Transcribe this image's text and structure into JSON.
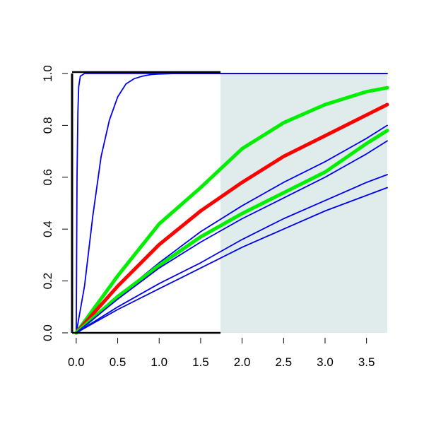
{
  "chart_data": {
    "type": "line",
    "title": "",
    "xlabel": "",
    "ylabel": "",
    "xlim": [
      -0.05,
      3.75
    ],
    "ylim": [
      0,
      1
    ],
    "x_ticks": [
      0.0,
      0.5,
      1.0,
      1.5,
      2.0,
      2.5,
      3.0,
      3.5
    ],
    "x_tick_labels": [
      "0.0",
      "0.5",
      "1.0",
      "1.5",
      "2.0",
      "2.5",
      "3.0",
      "3.5"
    ],
    "y_ticks": [
      0.0,
      0.2,
      0.4,
      0.6,
      0.8,
      1.0
    ],
    "y_tick_labels": [
      "0.0",
      "0.2",
      "0.4",
      "0.6",
      "0.8",
      "1.0"
    ],
    "grid": false,
    "legend": "none",
    "shaded_region": {
      "x_from": 1.74,
      "x_to": 3.75,
      "color": "#e0ecec"
    },
    "colors": {
      "blue": "#0000ee",
      "red": "#ff0000",
      "green": "#00ee00",
      "axis": "#000000"
    },
    "series": [
      {
        "color": "blue",
        "width": "thin",
        "x": [
          0,
          0.01,
          0.02,
          0.03,
          0.05,
          0.1,
          0.2,
          3.75
        ],
        "y": [
          0,
          0.6,
          0.85,
          0.95,
          0.99,
          1.0,
          1.0,
          1.0
        ]
      },
      {
        "color": "blue",
        "width": "thin",
        "x": [
          0,
          0.1,
          0.2,
          0.3,
          0.4,
          0.5,
          0.6,
          0.7,
          0.8,
          0.9,
          1.0,
          1.2,
          1.5,
          2.0,
          3.75
        ],
        "y": [
          0,
          0.18,
          0.45,
          0.68,
          0.82,
          0.91,
          0.96,
          0.98,
          0.99,
          0.996,
          0.998,
          1.0,
          1.0,
          1.0,
          1.0
        ]
      },
      {
        "color": "green",
        "width": "thick",
        "x": [
          0,
          0.5,
          1.0,
          1.5,
          2.0,
          2.5,
          3.0,
          3.5,
          3.75
        ],
        "y": [
          0,
          0.22,
          0.42,
          0.56,
          0.71,
          0.81,
          0.88,
          0.93,
          0.945
        ]
      },
      {
        "color": "red",
        "width": "thick",
        "x": [
          0,
          0.5,
          1.0,
          1.5,
          2.0,
          2.5,
          3.0,
          3.5,
          3.75
        ],
        "y": [
          0,
          0.18,
          0.34,
          0.47,
          0.58,
          0.68,
          0.76,
          0.84,
          0.88
        ]
      },
      {
        "color": "blue",
        "width": "thin",
        "x": [
          0,
          0.5,
          1.0,
          1.5,
          2.0,
          2.5,
          3.0,
          3.5,
          3.75
        ],
        "y": [
          0,
          0.14,
          0.27,
          0.39,
          0.49,
          0.58,
          0.66,
          0.75,
          0.8
        ]
      },
      {
        "color": "green",
        "width": "thick",
        "x": [
          0,
          0.5,
          1.0,
          1.5,
          2.0,
          2.5,
          3.0,
          3.5,
          3.75
        ],
        "y": [
          0,
          0.14,
          0.26,
          0.37,
          0.46,
          0.54,
          0.62,
          0.73,
          0.78
        ]
      },
      {
        "color": "blue",
        "width": "thin",
        "x": [
          0,
          0.5,
          1.0,
          1.5,
          2.0,
          2.5,
          3.0,
          3.5,
          3.75
        ],
        "y": [
          0,
          0.13,
          0.25,
          0.35,
          0.44,
          0.52,
          0.6,
          0.69,
          0.74
        ]
      },
      {
        "color": "blue",
        "width": "thin",
        "x": [
          0,
          0.5,
          1.0,
          1.5,
          2.0,
          2.5,
          3.0,
          3.5,
          3.75
        ],
        "y": [
          0,
          0.1,
          0.19,
          0.27,
          0.36,
          0.44,
          0.51,
          0.58,
          0.61
        ]
      },
      {
        "color": "blue",
        "width": "thin",
        "x": [
          0,
          0.5,
          1.0,
          1.5,
          2.0,
          2.5,
          3.0,
          3.5,
          3.75
        ],
        "y": [
          0,
          0.09,
          0.17,
          0.25,
          0.33,
          0.4,
          0.47,
          0.53,
          0.56
        ]
      }
    ]
  }
}
